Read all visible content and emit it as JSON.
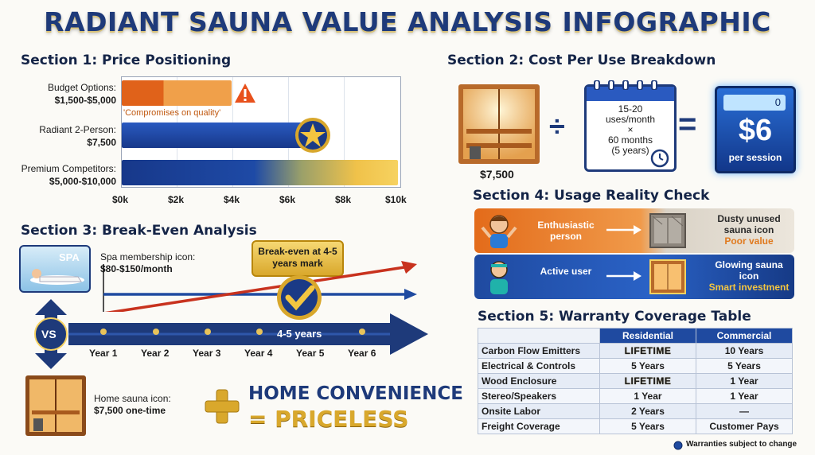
{
  "title": "RADIANT SAUNA VALUE ANALYSIS INFOGRAPHIC",
  "section1": {
    "heading": "Section 1: Price Positioning",
    "rows": [
      {
        "label": "Budget Options:",
        "price": "$1,500-$5,000"
      },
      {
        "label": "Radiant 2-Person:",
        "price": "$7,500"
      },
      {
        "label": "Premium Competitors:",
        "price": "$5,000-$10,000"
      }
    ],
    "note": "'Compromises on quality'",
    "ticks": [
      "$0k",
      "$2k",
      "$4k",
      "$6k",
      "$8k",
      "$10k"
    ],
    "warning_icon": "warning-triangle-icon",
    "star_icon": "star-badge-icon",
    "colors": {
      "budget": "#e8751f",
      "radiant": "#1f4aa0",
      "premium": "#f0c24a"
    }
  },
  "section2": {
    "heading": "Section 2: Cost Per Use Breakdown",
    "price": "$7,500",
    "calendar_lines": [
      "15-20",
      "uses/month",
      "×",
      "60 months",
      "(5 years)"
    ],
    "result_value": "$6",
    "result_label": "per session",
    "display_digit": "0",
    "divide_symbol": "÷",
    "equals_symbol": "="
  },
  "section3": {
    "heading": "Section 3: Break-Even Analysis",
    "spa_badge": "SPA",
    "spa_label": "Spa membership icon:",
    "spa_price": "$80-$150/month",
    "breakeven_callout": "Break-even at 4-5 years mark",
    "vs_label": "VS",
    "timeline_label": "4-5 years",
    "years": [
      "Year 1",
      "Year 2",
      "Year 3",
      "Year 4",
      "Year 5",
      "Year 6"
    ],
    "home_label": "Home sauna icon:",
    "home_price": "$7,500 one-time",
    "plus_symbol": "+",
    "tagline_1": "HOME CONVENIENCE",
    "tagline_2": "= PRICELESS"
  },
  "section4": {
    "heading": "Section 4: Usage Reality Check",
    "row1": {
      "person": "Enthusiastic person",
      "result": "Dusty unused sauna icon",
      "verdict": "Poor value"
    },
    "row2": {
      "person": "Active user",
      "result": "Glowing sauna icon",
      "verdict": "Smart investment"
    }
  },
  "section5": {
    "heading": "Section 5: Warranty Coverage Table",
    "columns": [
      "",
      "Residential",
      "Commercial"
    ],
    "rows": [
      {
        "item": "Carbon Flow Emitters",
        "residential": "LIFETIME",
        "commercial": "10 Years"
      },
      {
        "item": "Electrical & Controls",
        "residential": "5 Years",
        "commercial": "5 Years"
      },
      {
        "item": "Wood Enclosure",
        "residential": "LIFETIME",
        "commercial": "1 Year"
      },
      {
        "item": "Stereo/Speakers",
        "residential": "1 Year",
        "commercial": "1 Year"
      },
      {
        "item": "Onsite Labor",
        "residential": "2 Years",
        "commercial": "—"
      },
      {
        "item": "Freight Coverage",
        "residential": "5 Years",
        "commercial": "Customer Pays"
      }
    ],
    "footnote": "Warranties subject to change"
  }
}
